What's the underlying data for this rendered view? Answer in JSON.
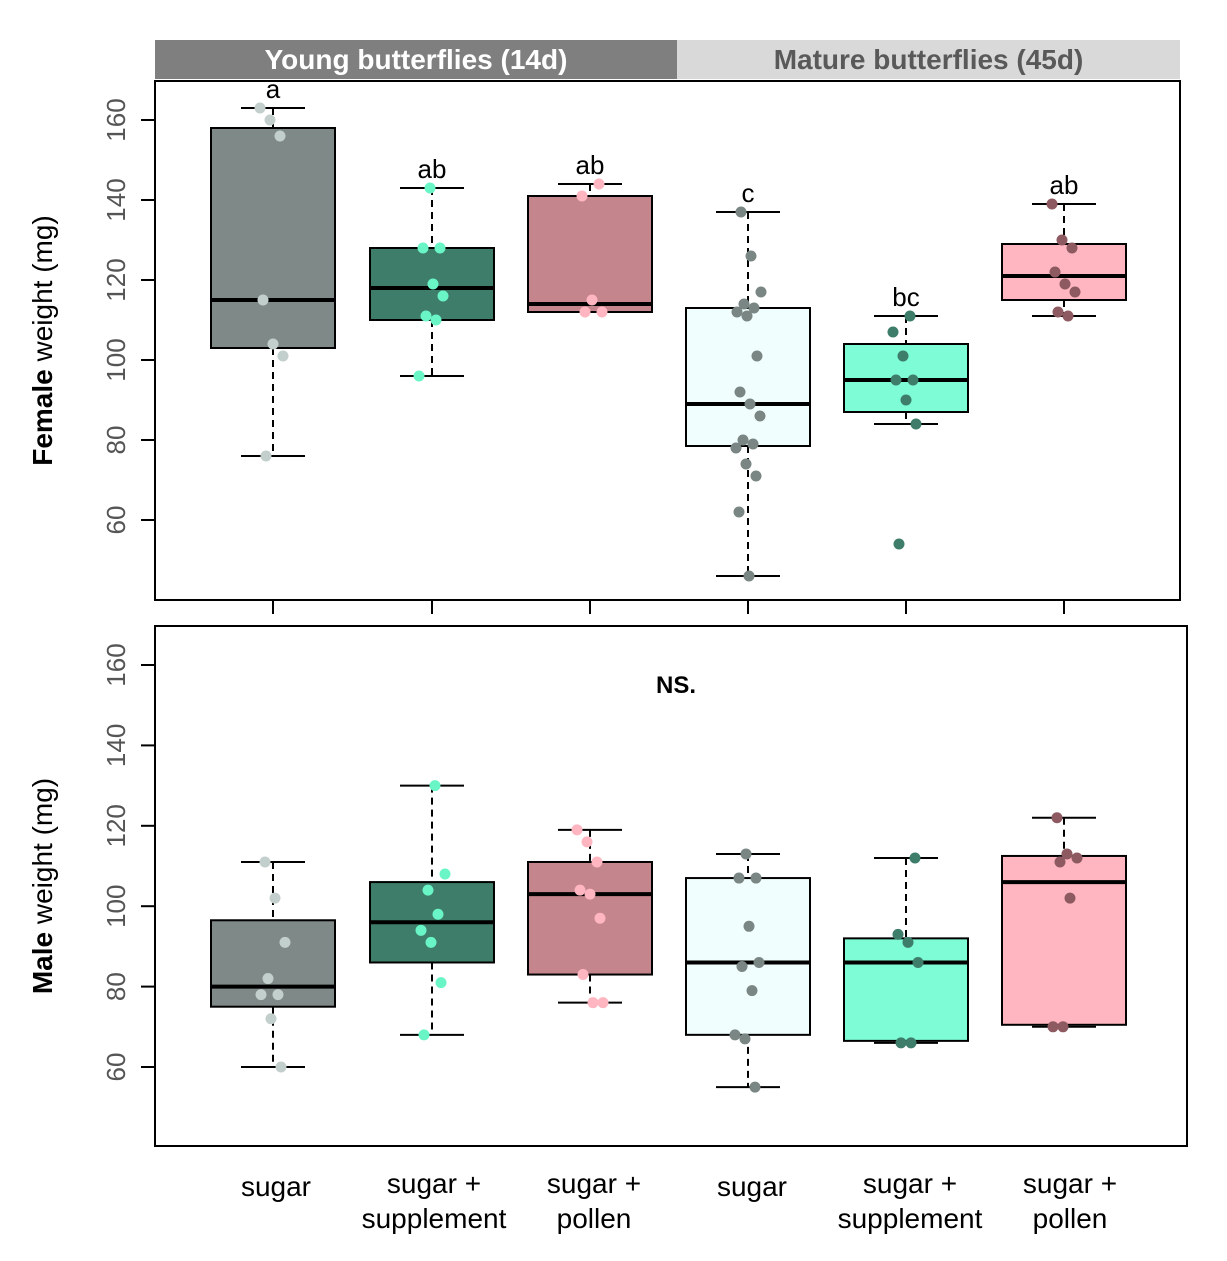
{
  "strips": [
    {
      "label": "Young butterflies (14d)",
      "bg": "#7f7f7f",
      "fg": "#ffffff"
    },
    {
      "label": "Mature butterflies (45d)",
      "bg": "#d9d9d9",
      "fg": "#595959"
    }
  ],
  "chart_data": [
    {
      "type": "boxplot",
      "ylabel_bold": "Female",
      "ylabel_rest": " weight (mg)",
      "yticks": [
        60,
        80,
        100,
        120,
        140,
        160
      ],
      "ylim": [
        40,
        170
      ],
      "annotations": [
        "a",
        "ab",
        "ab",
        "c",
        "bc",
        "ab"
      ],
      "series": [
        {
          "group": "Young",
          "category": "sugar",
          "whisker_low": 76,
          "q1": 103,
          "median": 115,
          "q3": 158,
          "whisker_high": 163,
          "points": [
            163,
            160,
            156,
            115,
            104,
            101,
            76
          ]
        },
        {
          "group": "Young",
          "category": "sugar + supplement",
          "whisker_low": 96,
          "q1": 110,
          "median": 118,
          "q3": 128,
          "whisker_high": 143,
          "points": [
            143,
            128,
            128,
            119,
            116,
            111,
            110,
            96
          ]
        },
        {
          "group": "Young",
          "category": "sugar + pollen",
          "whisker_low": 112,
          "q1": 112,
          "median": 114,
          "q3": 141,
          "whisker_high": 144,
          "points": [
            144,
            141,
            115,
            112,
            112
          ]
        },
        {
          "group": "Mature",
          "category": "sugar",
          "whisker_low": 46,
          "q1": 78.5,
          "median": 89,
          "q3": 113,
          "whisker_high": 137,
          "points": [
            137,
            126,
            117,
            114,
            113,
            112,
            111,
            101,
            92,
            89,
            86,
            80,
            79,
            78,
            74,
            71,
            62,
            46
          ]
        },
        {
          "group": "Mature",
          "category": "sugar + supplement",
          "whisker_low": 84,
          "q1": 87,
          "median": 95,
          "q3": 104,
          "whisker_high": 111,
          "points": [
            111,
            107,
            101,
            95,
            95,
            90,
            84,
            54
          ]
        },
        {
          "group": "Mature",
          "category": "sugar + pollen",
          "whisker_low": 111,
          "q1": 115,
          "median": 121,
          "q3": 129,
          "whisker_high": 139,
          "points": [
            139,
            130,
            128,
            122,
            119,
            117,
            112,
            111
          ]
        }
      ]
    },
    {
      "type": "boxplot",
      "ylabel_bold": "Male",
      "ylabel_rest": " weight (mg)",
      "yticks": [
        60,
        80,
        100,
        120,
        140,
        160
      ],
      "ylim": [
        40,
        170
      ],
      "annotation_center": "NS.",
      "series": [
        {
          "group": "Young",
          "category": "sugar",
          "whisker_low": 60,
          "q1": 75,
          "median": 80,
          "q3": 96.5,
          "whisker_high": 111,
          "points": [
            111,
            102,
            91,
            82,
            78,
            78,
            72,
            60
          ]
        },
        {
          "group": "Young",
          "category": "sugar + supplement",
          "whisker_low": 68,
          "q1": 86,
          "median": 96,
          "q3": 106,
          "whisker_high": 130,
          "points": [
            130,
            108,
            104,
            98,
            94,
            91,
            81,
            68
          ]
        },
        {
          "group": "Young",
          "category": "sugar + pollen",
          "whisker_low": 76,
          "q1": 83,
          "median": 103,
          "q3": 111,
          "whisker_high": 119,
          "points": [
            119,
            116,
            111,
            104,
            103,
            97,
            83,
            76,
            76
          ]
        },
        {
          "group": "Mature",
          "category": "sugar",
          "whisker_low": 55,
          "q1": 68,
          "median": 86,
          "q3": 107,
          "whisker_high": 113,
          "points": [
            113,
            107,
            107,
            95,
            86,
            85,
            79,
            68,
            67,
            55
          ]
        },
        {
          "group": "Mature",
          "category": "sugar + supplement",
          "whisker_low": 66,
          "q1": 66.5,
          "median": 86,
          "q3": 92,
          "whisker_high": 112,
          "points": [
            112,
            93,
            91,
            86,
            66,
            66
          ]
        },
        {
          "group": "Mature",
          "category": "sugar + pollen",
          "whisker_low": 70,
          "q1": 70.5,
          "median": 106,
          "q3": 112.5,
          "whisker_high": 122,
          "points": [
            122,
            113,
            112,
            111,
            102,
            70,
            70
          ]
        }
      ]
    }
  ],
  "x_labels": [
    [
      "sugar"
    ],
    [
      "sugar +",
      "supplement"
    ],
    [
      "sugar +",
      "pollen"
    ],
    [
      "sugar"
    ],
    [
      "sugar +",
      "supplement"
    ],
    [
      "sugar +",
      "pollen"
    ]
  ],
  "colors": {
    "box_fill": [
      "#7f8a88",
      "#3d7d6a",
      "#c4858d",
      "#f0fefe",
      "#7dfcd5",
      "#ffb6c1"
    ],
    "point": [
      "#c3cfcc",
      "#6af5c6",
      "#ffb6c1",
      "#7a8683",
      "#3d7d6a",
      "#8d5a61"
    ],
    "axis": "#000000",
    "tick_text": "#555555"
  }
}
